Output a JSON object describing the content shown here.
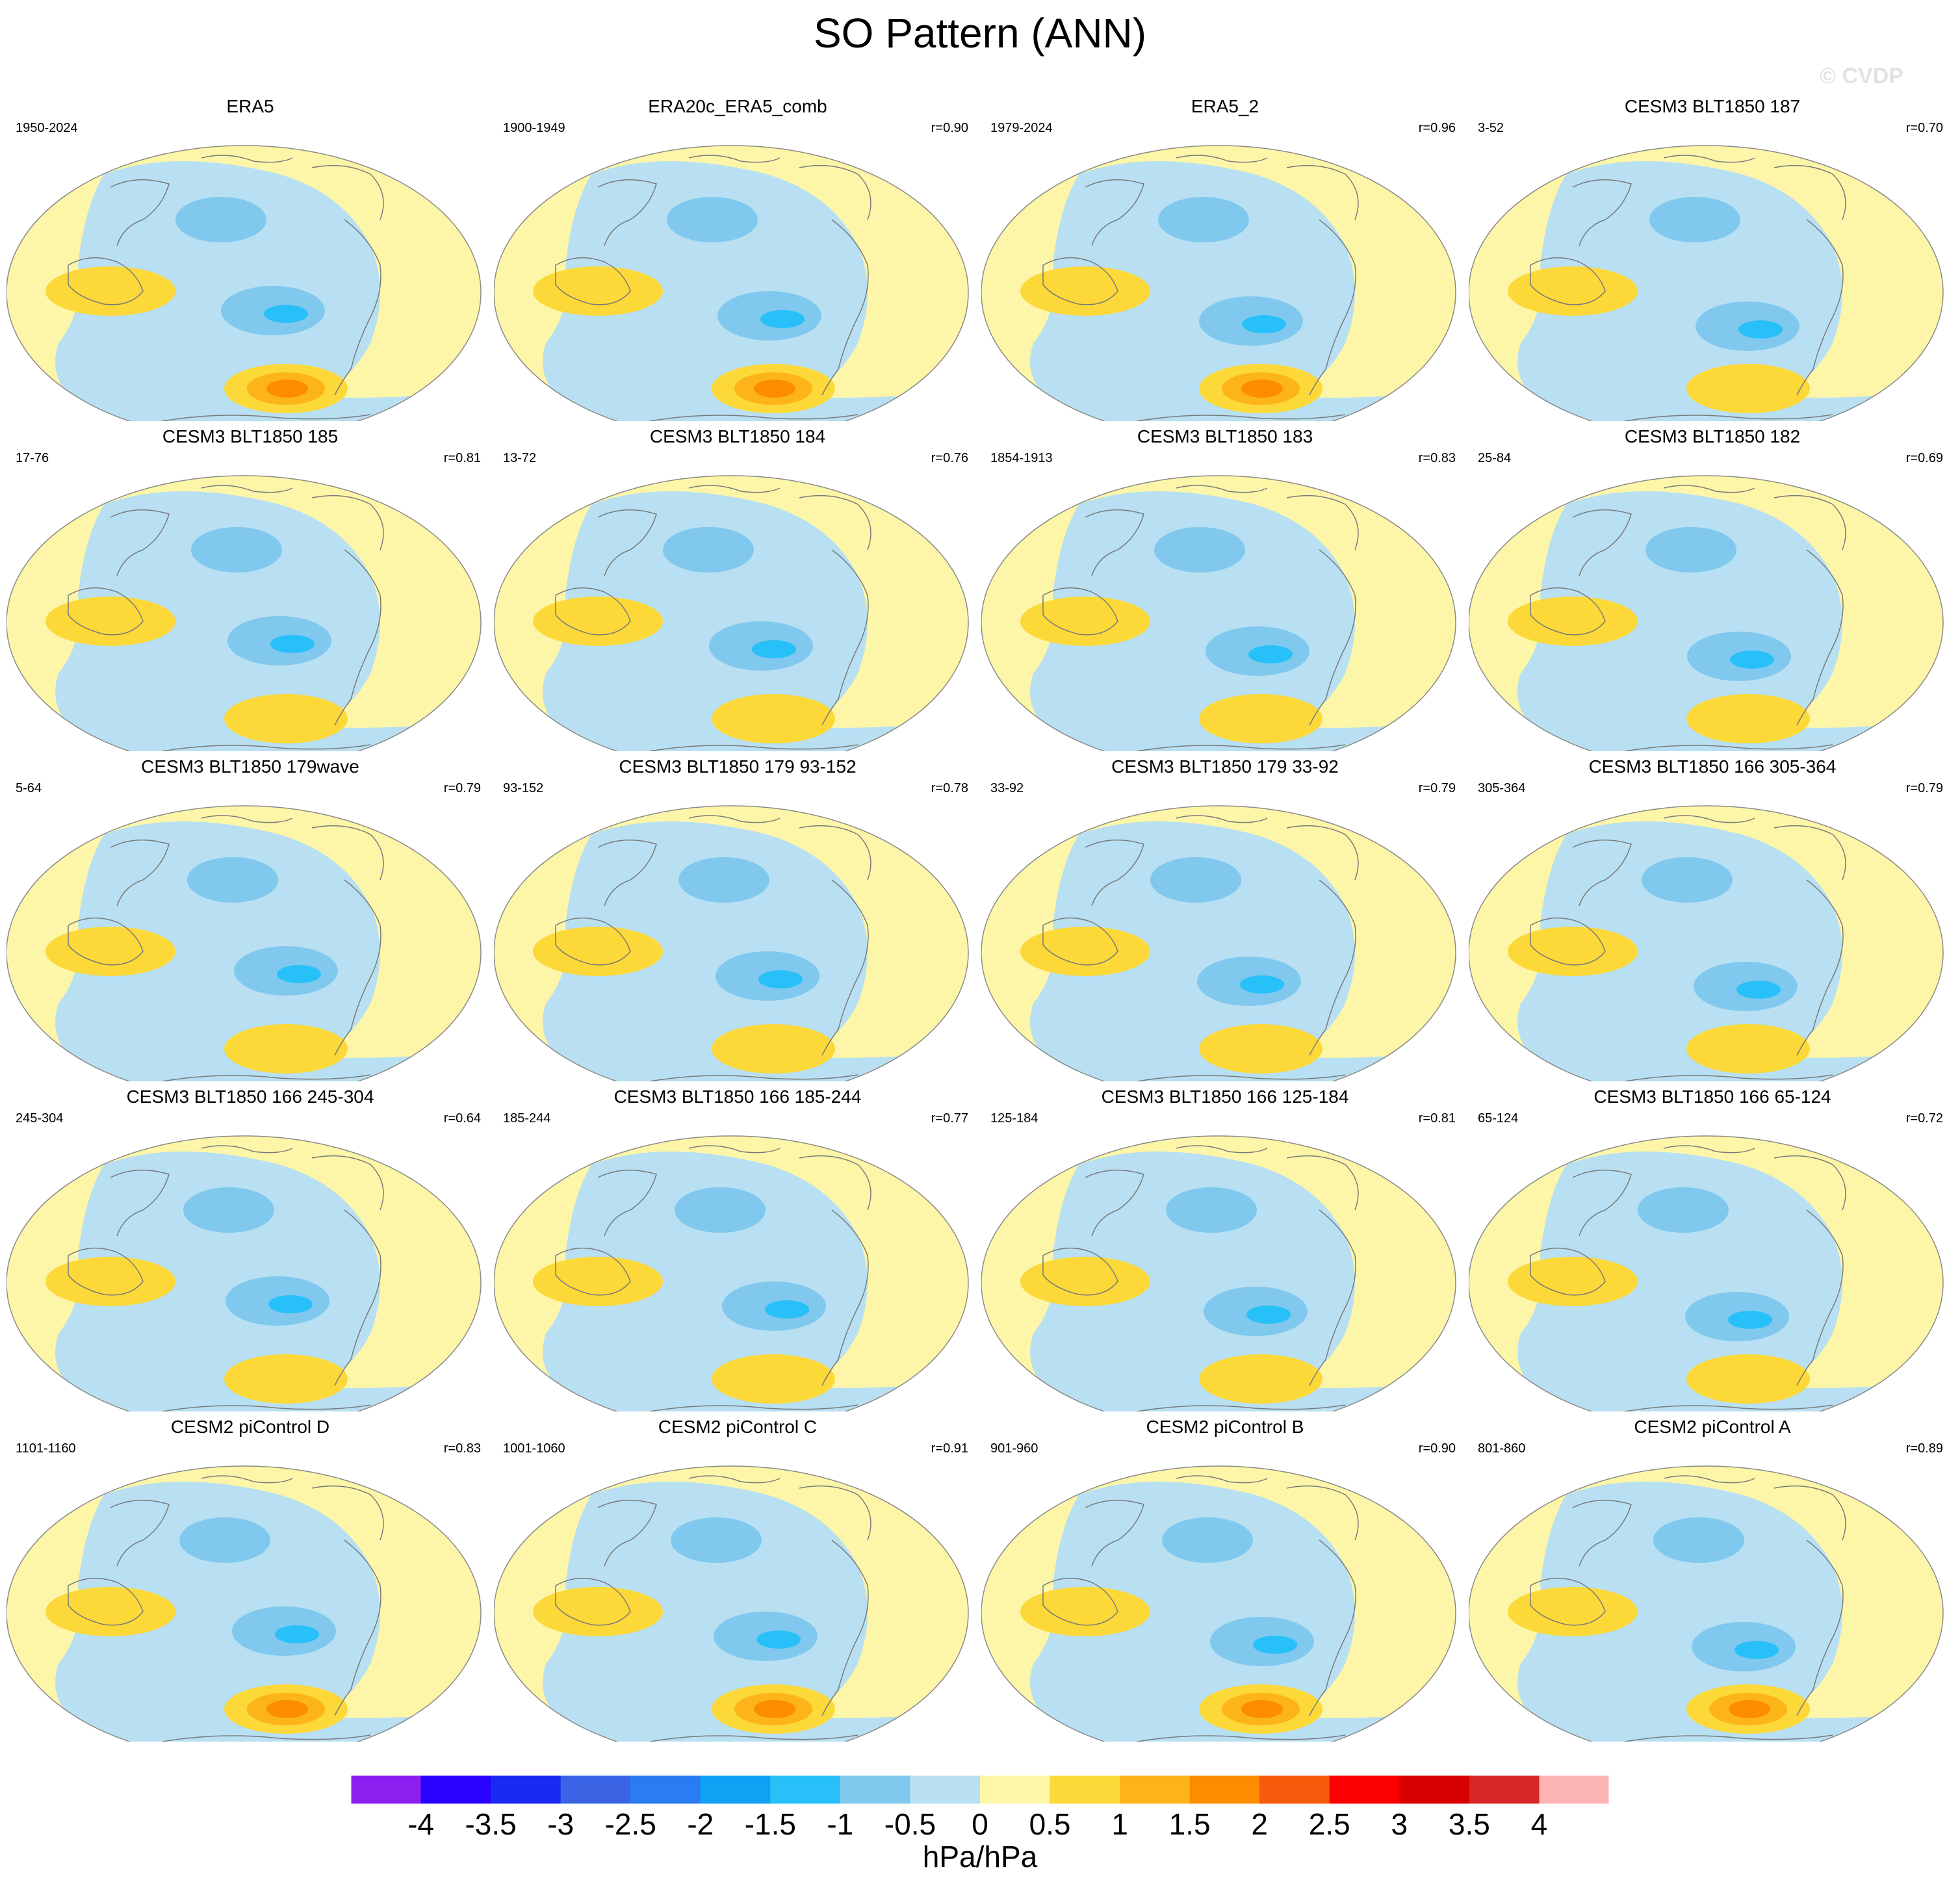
{
  "figure": {
    "title": "SO Pattern (ANN)",
    "watermark": "© CVDP",
    "units": "hPa/hPa"
  },
  "colors": {
    "ocean_neutral": "#b8e0f2",
    "land_neutral": "#fdf6a8",
    "outline": "#7a7a7a"
  },
  "panels": [
    {
      "title": "ERA5",
      "period": "1950-2024",
      "r": ""
    },
    {
      "title": "ERA20c_ERA5_comb",
      "period": "1900-1949",
      "r": "r=0.90"
    },
    {
      "title": "ERA5_2",
      "period": "1979-2024",
      "r": "r=0.96"
    },
    {
      "title": "CESM3 BLT1850 187",
      "period": "3-52",
      "r": "r=0.70"
    },
    {
      "title": "CESM3 BLT1850 185",
      "period": "17-76",
      "r": "r=0.81"
    },
    {
      "title": "CESM3 BLT1850 184",
      "period": "13-72",
      "r": "r=0.76"
    },
    {
      "title": "CESM3 BLT1850 183",
      "period": "1854-1913",
      "r": "r=0.83"
    },
    {
      "title": "CESM3 BLT1850 182",
      "period": "25-84",
      "r": "r=0.69"
    },
    {
      "title": "CESM3 BLT1850 179wave",
      "period": "5-64",
      "r": "r=0.79"
    },
    {
      "title": "CESM3 BLT1850 179 93-152",
      "period": "93-152",
      "r": "r=0.78"
    },
    {
      "title": "CESM3 BLT1850 179 33-92",
      "period": "33-92",
      "r": "r=0.79"
    },
    {
      "title": "CESM3 BLT1850 166 305-364",
      "period": "305-364",
      "r": "r=0.79"
    },
    {
      "title": "CESM3 BLT1850 166 245-304",
      "period": "245-304",
      "r": "r=0.64"
    },
    {
      "title": "CESM3 BLT1850 166 185-244",
      "period": "185-244",
      "r": "r=0.77"
    },
    {
      "title": "CESM3 BLT1850 166 125-184",
      "period": "125-184",
      "r": "r=0.81"
    },
    {
      "title": "CESM3 BLT1850 166 65-124",
      "period": "65-124",
      "r": "r=0.72"
    },
    {
      "title": "CESM2 piControl D",
      "period": "1101-1160",
      "r": "r=0.83"
    },
    {
      "title": "CESM2 piControl C",
      "period": "1001-1060",
      "r": "r=0.91"
    },
    {
      "title": "CESM2 piControl B",
      "period": "901-960",
      "r": "r=0.90"
    },
    {
      "title": "CESM2 piControl A",
      "period": "801-860",
      "r": "r=0.89"
    }
  ],
  "colorbar": {
    "colors": [
      "#8a1ff0",
      "#2a00ff",
      "#1a2af2",
      "#3a64e4",
      "#2a7cf2",
      "#10a0f4",
      "#28c0f8",
      "#80c8ee",
      "#b8e0f2",
      "#fdf6a8",
      "#fcd838",
      "#fcb418",
      "#fc8c00",
      "#f85a0c",
      "#fa0000",
      "#d80000",
      "#d62828",
      "#fcb4b4"
    ],
    "labels": [
      "-4",
      "-3.5",
      "-3",
      "-2.5",
      "-2",
      "-1.5",
      "-1",
      "-0.5",
      "0",
      "0.5",
      "1",
      "1.5",
      "2",
      "2.5",
      "3",
      "3.5",
      "4"
    ]
  }
}
